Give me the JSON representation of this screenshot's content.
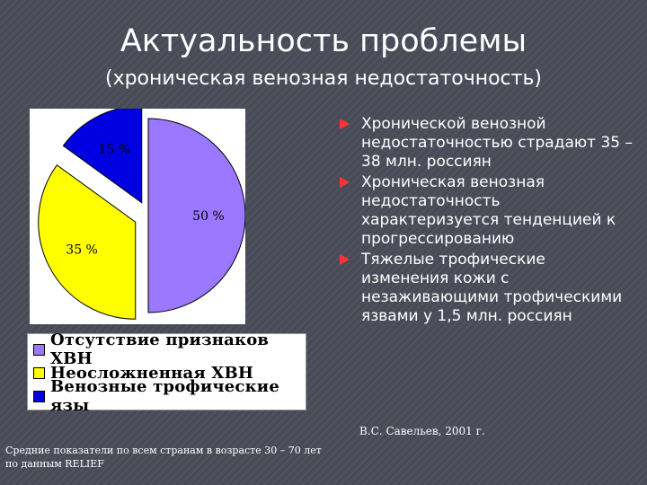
{
  "header": {
    "title": "Актуальность проблемы",
    "subtitle": "(хроническая венозная недостаточность)"
  },
  "chart_data": {
    "type": "pie",
    "labels": [
      "Отсутствие признаков ХВН",
      "Неосложненная ХВН",
      "Венозные трофические язы"
    ],
    "values": [
      50,
      35,
      15
    ],
    "value_labels": [
      "50 %",
      "35 %",
      "15 %"
    ],
    "colors": [
      "#9a78ff",
      "#ffff00",
      "#0000e0"
    ],
    "exploded": [
      false,
      true,
      true
    ],
    "legend_position": "bottom"
  },
  "bullets": [
    "Хронической венозной недостаточностью страдают 35 – 38 млн. россиян",
    "Хроническая венозная недостаточность характеризуется тенденцией к прогрессированию",
    "Тяжелые трофические изменения кожи с незаживающими трофическими язвами у 1,5 млн. россиян"
  ],
  "source": "В.С. Савельев, 2001 г.",
  "footnote": {
    "line1": "Средние показатели по всем странам в возрасте 30 – 70 лет",
    "line2": "по данным RELIEF"
  }
}
